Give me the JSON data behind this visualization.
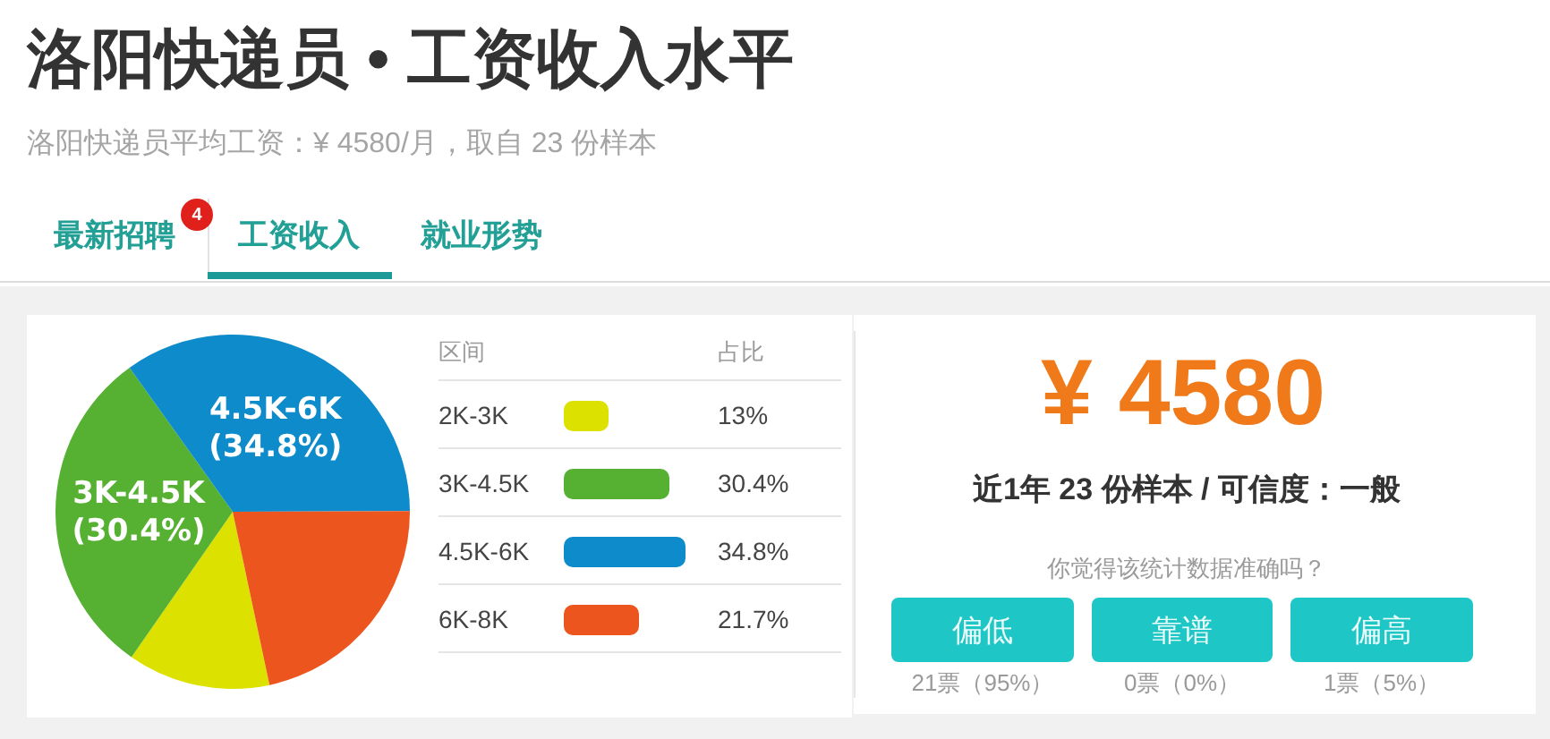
{
  "chart_data": {
    "type": "pie",
    "title": "洛阳快递员 • 工资收入水平",
    "subtitle": "洛阳快递员平均工资：¥ 4580/月，取自 23 份样本",
    "categories": [
      "2K-3K",
      "3K-4.5K",
      "4.5K-6K",
      "6K-8K"
    ],
    "values": [
      13,
      30.4,
      34.8,
      21.7
    ],
    "colors": [
      "#dce100",
      "#56b133",
      "#0e8bca",
      "#ec561e"
    ],
    "value_labels": [
      "13%",
      "30.4%",
      "34.8%",
      "21.7%"
    ],
    "legend": "right",
    "legend_title": "区间",
    "annotations": [
      "最新招聘",
      "4",
      "工资收入",
      "就业形势",
      "占比",
      "¥ 4580",
      "近1年 23 份样本 / 可信度：一般",
      "你觉得该统计数据准确吗？",
      "偏低",
      "靠谱",
      "偏高",
      "21票（95%）",
      "0票（0%）",
      "1票（5%）",
      {
        "text": "3K-4.5K (30.4%)",
        "x": "3K-4.5K"
      },
      {
        "text": "4.5K-6K (34.8%)",
        "x": "4.5K-6K"
      }
    ]
  }
}
